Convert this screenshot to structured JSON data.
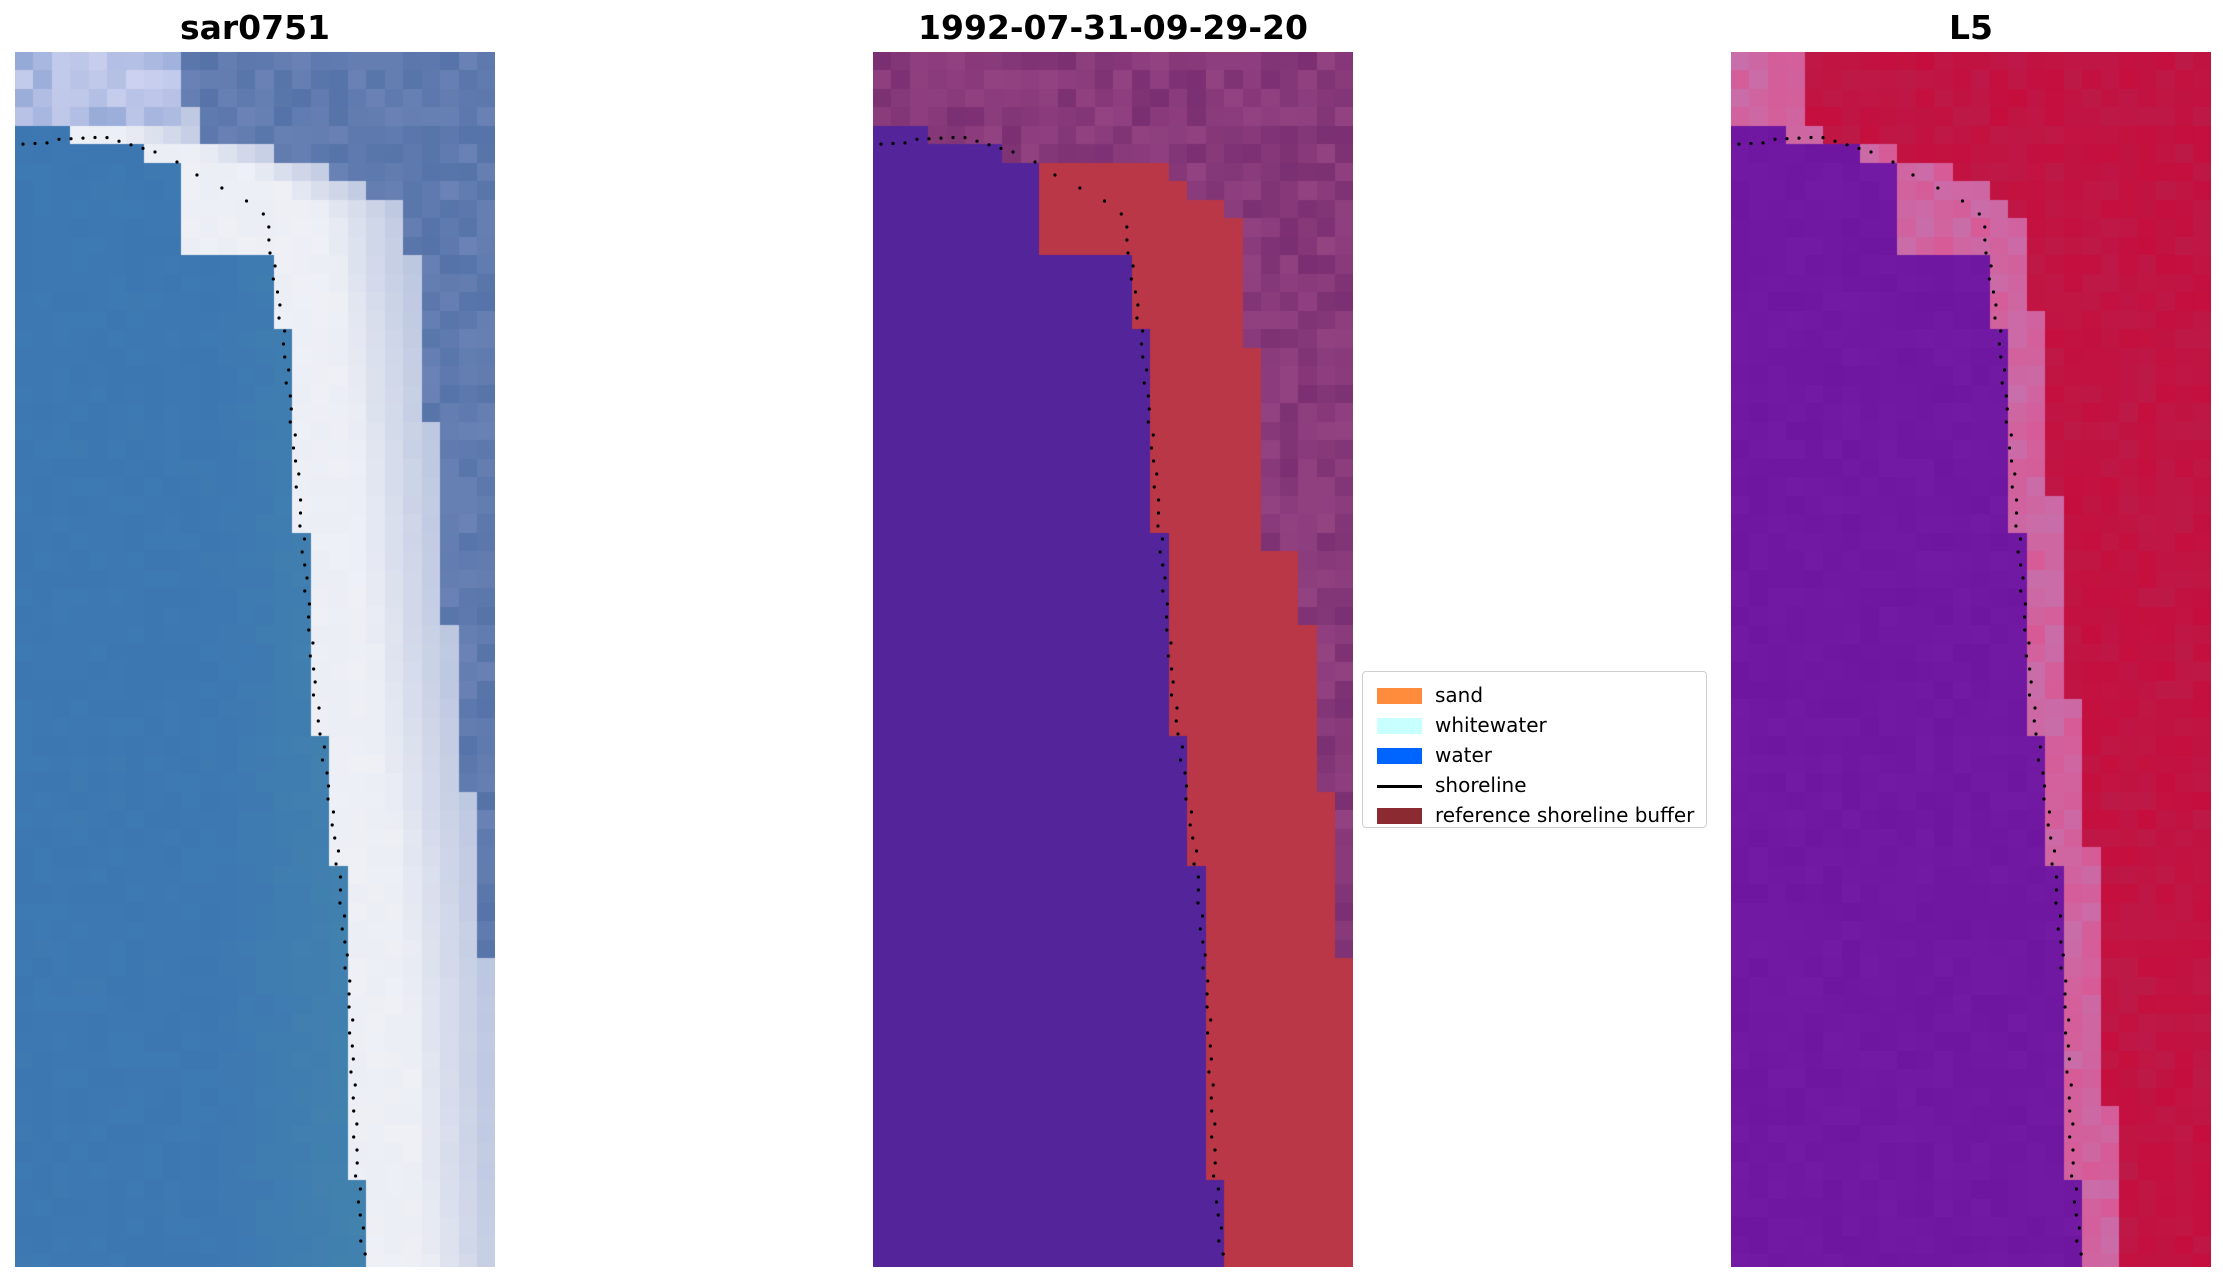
{
  "panels": [
    {
      "title": "sar0751",
      "kind": "rgb-image"
    },
    {
      "title": "1992-07-31-09-29-20",
      "kind": "classified-image"
    },
    {
      "title": "L5",
      "kind": "index-image"
    }
  ],
  "legend": {
    "items": [
      {
        "label": "sand",
        "type": "patch",
        "color": "#ff8c3c"
      },
      {
        "label": "whitewater",
        "type": "patch",
        "color": "#c8ffff"
      },
      {
        "label": "water",
        "type": "patch",
        "color": "#0064ff"
      },
      {
        "label": "shoreline",
        "type": "line",
        "color": "#000000"
      },
      {
        "label": "reference shoreline buffer",
        "type": "patch",
        "color": "#8b2a30"
      }
    ]
  },
  "colors": {
    "water_rgb": "#3d78b2",
    "whitewater_rgb": "#eef0f6",
    "land_rgb": "#5573a8",
    "class_water": "#53249a",
    "class_buffer": "#b93746",
    "class_land": "#7a2f72",
    "index_water": "#6e16a0",
    "index_land": "#c50e3e",
    "shoreline_dots": "#000000"
  }
}
